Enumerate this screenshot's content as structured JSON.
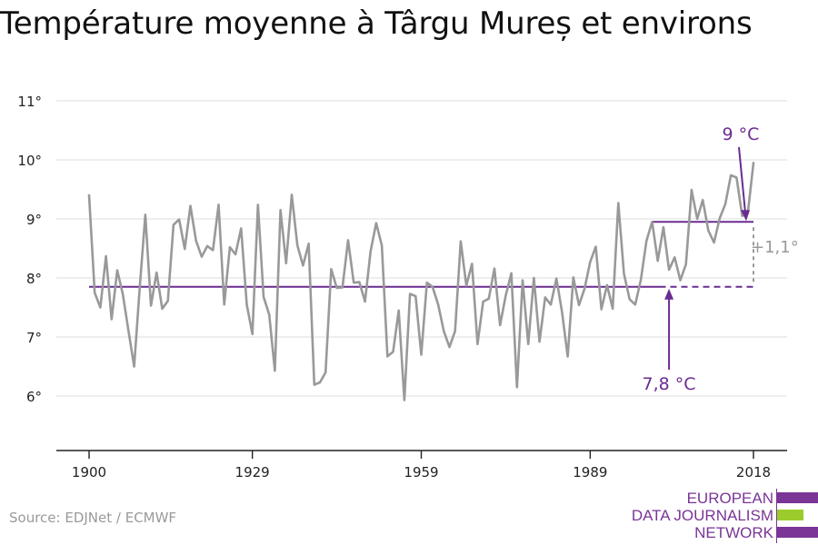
{
  "title": "Température moyenne à Târgu Mureș et environs",
  "source": "Source: EDJNet / ECMWF",
  "logo": {
    "line1": "EUROPEAN",
    "line2": "DATA JOURNALISM",
    "line3": "NETWORK",
    "colors": [
      "#7a3596",
      "#9ccc2c",
      "#7a3596"
    ]
  },
  "colors": {
    "series": "#999999",
    "accent": "#6b2c91",
    "grid": "#e3e3e3",
    "axis": "#222222",
    "difference": "#999999"
  },
  "chart_data": {
    "type": "line",
    "title": "Température moyenne à Târgu Mureș et environs",
    "xlabel": "",
    "ylabel": "",
    "xlim": [
      1900,
      2018
    ],
    "ylim": [
      5,
      11
    ],
    "x_ticks": [
      1900,
      1929,
      1959,
      1989,
      2018
    ],
    "x_tick_labels": [
      "1900",
      "1929",
      "1959",
      "1989",
      "2018"
    ],
    "y_ticks": [
      6,
      7,
      8,
      9,
      10,
      11
    ],
    "y_tick_labels": [
      "6°",
      "7°",
      "8°",
      "9°",
      "10°",
      "11°"
    ],
    "grid": true,
    "series": [
      {
        "x": [
          1900,
          1901,
          1902,
          1903,
          1904,
          1905,
          1906,
          1907,
          1908,
          1909,
          1910,
          1911,
          1912,
          1913,
          1914,
          1915,
          1916,
          1917,
          1918,
          1919,
          1920,
          1921,
          1922,
          1923,
          1924,
          1925,
          1926,
          1927,
          1928,
          1929,
          1930,
          1931,
          1932,
          1933,
          1934,
          1935,
          1936,
          1937,
          1938,
          1939,
          1940,
          1941,
          1942,
          1943,
          1944,
          1945,
          1946,
          1947,
          1948,
          1949,
          1950,
          1951,
          1952,
          1953,
          1954,
          1955,
          1956,
          1957,
          1958,
          1959,
          1960,
          1961,
          1962,
          1963,
          1964,
          1965,
          1966,
          1967,
          1968,
          1969,
          1970,
          1971,
          1972,
          1973,
          1974,
          1975,
          1976,
          1977,
          1978,
          1979,
          1980,
          1981,
          1982,
          1983,
          1984,
          1985,
          1986,
          1987,
          1988,
          1989,
          1990,
          1991,
          1992,
          1993,
          1994,
          1995,
          1996,
          1997,
          1998,
          1999,
          2000,
          2001,
          2002,
          2003,
          2004,
          2005,
          2006,
          2007,
          2008,
          2009,
          2010,
          2011,
          2012,
          2013,
          2014,
          2015,
          2016,
          2017,
          2018
        ],
        "values": [
          9.4,
          7.75,
          7.5,
          8.37,
          7.3,
          8.13,
          7.72,
          7.1,
          6.5,
          7.85,
          9.07,
          7.53,
          8.09,
          7.48,
          7.61,
          8.9,
          8.99,
          8.49,
          9.22,
          8.63,
          8.36,
          8.54,
          8.47,
          9.24,
          7.55,
          8.52,
          8.4,
          8.84,
          7.55,
          7.05,
          9.24,
          7.68,
          7.38,
          6.43,
          9.15,
          8.25,
          9.41,
          8.55,
          8.21,
          8.58,
          6.19,
          6.23,
          6.4,
          8.15,
          7.83,
          7.84,
          8.64,
          7.92,
          7.93,
          7.6,
          8.45,
          8.93,
          8.55,
          6.67,
          6.75,
          7.45,
          5.93,
          7.73,
          7.69,
          6.7,
          7.92,
          7.85,
          7.55,
          7.1,
          6.83,
          7.1,
          8.62,
          7.87,
          8.24,
          6.88,
          7.6,
          7.65,
          8.16,
          7.2,
          7.7,
          8.08,
          6.15,
          7.96,
          6.88,
          8.0,
          6.92,
          7.67,
          7.55,
          7.99,
          7.42,
          6.67,
          8.01,
          7.54,
          7.82,
          8.27,
          8.53,
          7.47,
          7.88,
          7.48,
          9.27,
          8.07,
          7.64,
          7.55,
          7.97,
          8.63,
          8.95,
          8.29,
          8.86,
          8.14,
          8.35,
          7.96,
          8.23,
          9.49,
          9.0,
          9.32,
          8.8,
          8.6,
          9.01,
          9.25,
          9.74,
          9.7,
          9.05,
          9.1,
          9.95
        ]
      }
    ],
    "annotations": {
      "reference_start_year": 1900,
      "reference_end_year": 2018,
      "reference_value": 7.85,
      "reference_label": "7,8 °C",
      "recent_start_year": 2000,
      "recent_end_year": 2018,
      "recent_value": 8.95,
      "recent_label": "9 °C",
      "difference_label": "+1,1°"
    }
  }
}
